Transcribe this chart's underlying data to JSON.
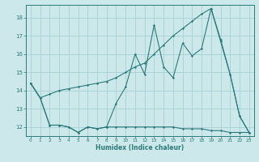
{
  "xlabel": "Humidex (Indice chaleur)",
  "bg_color": "#cce8ea",
  "grid_color": "#aad4d8",
  "line_color": "#2d7a7a",
  "xlim": [
    -0.5,
    23.5
  ],
  "ylim": [
    11.5,
    18.7
  ],
  "yticks": [
    12,
    13,
    14,
    15,
    16,
    17,
    18
  ],
  "xticks": [
    0,
    1,
    2,
    3,
    4,
    5,
    6,
    7,
    8,
    9,
    10,
    11,
    12,
    13,
    14,
    15,
    16,
    17,
    18,
    19,
    20,
    21,
    22,
    23
  ],
  "series1_x": [
    0,
    1,
    2,
    3,
    4,
    5,
    6,
    7,
    8,
    9,
    10,
    11,
    12,
    13,
    14,
    15,
    16,
    17,
    18,
    19,
    20,
    21,
    22,
    23
  ],
  "series1_y": [
    14.4,
    13.6,
    12.1,
    12.1,
    12.0,
    11.7,
    12.0,
    11.9,
    12.0,
    12.0,
    12.0,
    12.0,
    12.0,
    12.0,
    12.0,
    12.0,
    11.9,
    11.9,
    11.9,
    11.8,
    11.8,
    11.7,
    11.7,
    11.7
  ],
  "series2_x": [
    0,
    1,
    2,
    3,
    4,
    5,
    6,
    7,
    8,
    9,
    10,
    11,
    12,
    13,
    14,
    15,
    16,
    17,
    18,
    19,
    20,
    21,
    22,
    23
  ],
  "series2_y": [
    14.4,
    13.6,
    13.8,
    14.0,
    14.1,
    14.2,
    14.3,
    14.4,
    14.5,
    14.7,
    15.0,
    15.3,
    15.5,
    16.0,
    16.5,
    17.0,
    17.4,
    17.8,
    18.2,
    18.5,
    16.7,
    14.9,
    12.6,
    11.7
  ],
  "series3_x": [
    0,
    1,
    2,
    3,
    4,
    5,
    6,
    7,
    8,
    9,
    10,
    11,
    12,
    13,
    14,
    15,
    16,
    17,
    18,
    19,
    20,
    21,
    22,
    23
  ],
  "series3_y": [
    14.4,
    13.6,
    12.1,
    12.1,
    12.0,
    11.7,
    12.0,
    11.9,
    12.0,
    13.3,
    14.2,
    16.0,
    14.9,
    17.6,
    15.3,
    14.7,
    16.6,
    15.9,
    16.3,
    18.5,
    16.8,
    14.9,
    12.6,
    11.7
  ]
}
